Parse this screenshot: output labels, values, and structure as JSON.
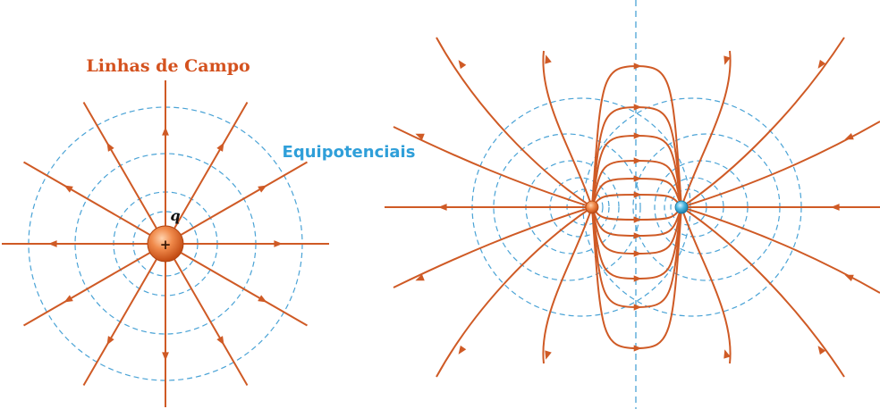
{
  "labels": {
    "field_lines": "Linhas de Campo",
    "equipotentials": "Equipotenciais",
    "charge_symbol": "q",
    "plus_sign": "+"
  },
  "colors": {
    "field_line": "#cf5a25",
    "equipotential": "#4aa3d6",
    "positive_charge": "#f08a4b",
    "negative_charge": "#49b6e0",
    "field_label": "#d4521f",
    "equi_label": "#2f9fd9"
  },
  "diagrams": [
    {
      "name": "single-positive-charge",
      "charges": [
        "positive"
      ]
    },
    {
      "name": "dipole",
      "charges": [
        "positive",
        "negative"
      ]
    }
  ]
}
